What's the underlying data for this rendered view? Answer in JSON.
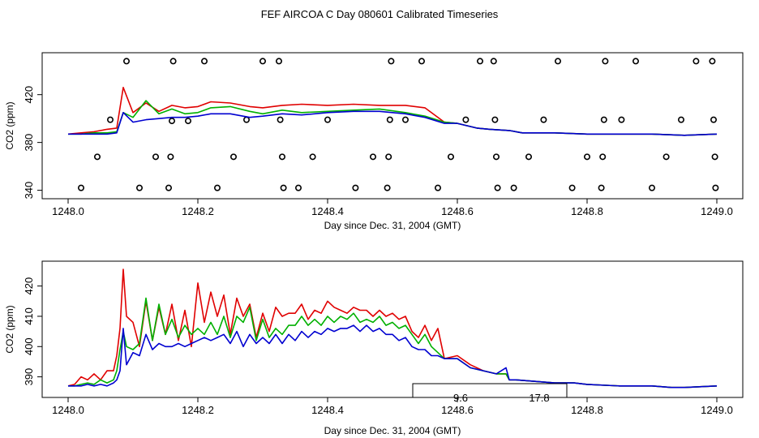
{
  "title": "FEF AIRCOA C  Day 080601  Calibrated Timeseries",
  "colors": {
    "red": "#e00000",
    "green": "#00b000",
    "blue": "#0000d0"
  },
  "chart_data": [
    {
      "type": "line",
      "xlabel": "Day since Dec. 31, 2004 (GMT)",
      "ylabel": "CO2 (ppm)",
      "xlim": [
        1248.0,
        1249.0
      ],
      "ylim": [
        337,
        451
      ],
      "xticks": [
        1248.0,
        1248.2,
        1248.4,
        1248.6,
        1248.8,
        1249.0
      ],
      "xtick_labels": [
        "1248.0",
        "1248.2",
        "1248.4",
        "1248.6",
        "1248.8",
        "1249.0"
      ],
      "yticks": [
        340,
        380,
        420
      ],
      "ytick_labels": [
        "340",
        "380",
        "420"
      ],
      "x": [
        1248.0,
        1248.02,
        1248.04,
        1248.06,
        1248.075,
        1248.085,
        1248.1,
        1248.12,
        1248.14,
        1248.16,
        1248.18,
        1248.2,
        1248.22,
        1248.25,
        1248.28,
        1248.3,
        1248.33,
        1248.36,
        1248.4,
        1248.44,
        1248.48,
        1248.52,
        1248.55,
        1248.58,
        1248.6,
        1248.63,
        1248.65,
        1248.68,
        1248.7,
        1248.75,
        1248.8,
        1248.85,
        1248.9,
        1248.95,
        1249.0
      ],
      "series": [
        {
          "color": "red",
          "values": [
            387,
            388,
            389,
            391,
            392,
            426,
            405,
            413,
            406,
            411,
            409,
            410,
            414,
            413,
            410,
            409,
            411,
            412,
            411,
            412,
            411,
            411,
            409,
            397,
            396,
            392,
            391,
            390,
            388,
            388,
            387,
            387,
            387,
            386,
            387
          ]
        },
        {
          "color": "green",
          "values": [
            387,
            387,
            388,
            388,
            389,
            405,
            401,
            415,
            404,
            408,
            404,
            405,
            409,
            410,
            406,
            404,
            407,
            405,
            406,
            407,
            408,
            405,
            402,
            397,
            396,
            392,
            391,
            390,
            388,
            388,
            387,
            387,
            387,
            386,
            387
          ]
        },
        {
          "color": "blue",
          "values": [
            387,
            387,
            387,
            387,
            388,
            405,
            397,
            399,
            400,
            401,
            401,
            402,
            404,
            404,
            401,
            402,
            404,
            403,
            405,
            406,
            406,
            404,
            401,
            396,
            396,
            392,
            391,
            390,
            388,
            388,
            387,
            387,
            387,
            386,
            387
          ]
        }
      ],
      "markers": [
        [
          1248.02,
          342
        ],
        [
          1248.045,
          368
        ],
        [
          1248.065,
          399
        ],
        [
          1248.09,
          448
        ],
        [
          1248.11,
          342
        ],
        [
          1248.135,
          368
        ],
        [
          1248.155,
          342
        ],
        [
          1248.158,
          368
        ],
        [
          1248.16,
          398
        ],
        [
          1248.162,
          448
        ],
        [
          1248.185,
          398
        ],
        [
          1248.21,
          448
        ],
        [
          1248.23,
          342
        ],
        [
          1248.255,
          368
        ],
        [
          1248.275,
          399
        ],
        [
          1248.3,
          448
        ],
        [
          1248.325,
          448
        ],
        [
          1248.327,
          399
        ],
        [
          1248.33,
          368
        ],
        [
          1248.332,
          342
        ],
        [
          1248.355,
          342
        ],
        [
          1248.377,
          368
        ],
        [
          1248.4,
          399
        ],
        [
          1248.443,
          342
        ],
        [
          1248.47,
          368
        ],
        [
          1248.492,
          342
        ],
        [
          1248.494,
          368
        ],
        [
          1248.496,
          399
        ],
        [
          1248.498,
          448
        ],
        [
          1248.52,
          399
        ],
        [
          1248.545,
          448
        ],
        [
          1248.57,
          342
        ],
        [
          1248.59,
          368
        ],
        [
          1248.613,
          399
        ],
        [
          1248.635,
          448
        ],
        [
          1248.656,
          448
        ],
        [
          1248.658,
          399
        ],
        [
          1248.66,
          368
        ],
        [
          1248.662,
          342
        ],
        [
          1248.687,
          342
        ],
        [
          1248.71,
          368
        ],
        [
          1248.733,
          399
        ],
        [
          1248.755,
          448
        ],
        [
          1248.777,
          342
        ],
        [
          1248.8,
          368
        ],
        [
          1248.822,
          342
        ],
        [
          1248.824,
          368
        ],
        [
          1248.826,
          399
        ],
        [
          1248.828,
          448
        ],
        [
          1248.853,
          399
        ],
        [
          1248.875,
          448
        ],
        [
          1248.9,
          342
        ],
        [
          1248.922,
          368
        ],
        [
          1248.945,
          399
        ],
        [
          1248.968,
          448
        ],
        [
          1248.993,
          448
        ],
        [
          1248.995,
          399
        ],
        [
          1248.997,
          368
        ],
        [
          1248.998,
          342
        ]
      ]
    },
    {
      "type": "line",
      "xlabel": "Day since Dec. 31, 2004 (GMT)",
      "ylabel": "CO2 (ppm)",
      "xlim": [
        1248.0,
        1249.0
      ],
      "ylim": [
        384.8,
        426.6
      ],
      "xticks": [
        1248.0,
        1248.2,
        1248.4,
        1248.6,
        1248.8,
        1249.0
      ],
      "xtick_labels": [
        "1248.0",
        "1248.2",
        "1248.4",
        "1248.6",
        "1248.8",
        "1249.0"
      ],
      "yticks": [
        390,
        400,
        410,
        420
      ],
      "ytick_labels": [
        "390",
        "400",
        "410",
        "420"
      ],
      "x": [
        1248.0,
        1248.01,
        1248.02,
        1248.03,
        1248.04,
        1248.05,
        1248.06,
        1248.07,
        1248.075,
        1248.08,
        1248.085,
        1248.09,
        1248.1,
        1248.11,
        1248.12,
        1248.13,
        1248.14,
        1248.15,
        1248.16,
        1248.17,
        1248.18,
        1248.19,
        1248.2,
        1248.21,
        1248.22,
        1248.23,
        1248.24,
        1248.25,
        1248.26,
        1248.27,
        1248.28,
        1248.29,
        1248.3,
        1248.31,
        1248.32,
        1248.33,
        1248.34,
        1248.35,
        1248.36,
        1248.37,
        1248.38,
        1248.39,
        1248.4,
        1248.41,
        1248.42,
        1248.43,
        1248.44,
        1248.45,
        1248.46,
        1248.47,
        1248.48,
        1248.49,
        1248.5,
        1248.51,
        1248.52,
        1248.53,
        1248.54,
        1248.55,
        1248.56,
        1248.57,
        1248.58,
        1248.6,
        1248.62,
        1248.64,
        1248.66,
        1248.675,
        1248.68,
        1248.69,
        1248.72,
        1248.75,
        1248.78,
        1248.8,
        1248.85,
        1248.9,
        1248.93,
        1248.95,
        1249.0
      ],
      "series": [
        {
          "color": "red",
          "values": [
            387,
            387.5,
            390,
            389,
            391,
            389,
            392,
            392,
            397,
            406,
            425.5,
            410,
            408,
            400,
            415,
            402,
            413,
            404,
            414,
            402,
            412,
            400,
            421,
            408,
            418,
            410,
            417,
            404,
            416,
            410,
            414,
            403,
            411,
            405,
            413,
            410,
            411,
            411,
            414,
            409,
            412,
            411,
            415,
            413,
            412,
            411,
            413,
            412,
            412,
            410,
            412,
            410,
            411,
            409,
            410,
            405,
            403,
            407,
            402,
            406,
            396,
            397,
            394,
            392,
            391,
            391,
            389,
            389,
            388.5,
            388,
            388,
            387.5,
            387,
            387,
            386.5,
            386.5,
            387
          ]
        },
        {
          "color": "green",
          "values": [
            387,
            387,
            387.5,
            388,
            387.5,
            389,
            388,
            389,
            392,
            399,
            405,
            400,
            399,
            401,
            416,
            402,
            414,
            404,
            409,
            403,
            407,
            404,
            406,
            404,
            408,
            404,
            410,
            403,
            410,
            408,
            413,
            402,
            409,
            403,
            406,
            404,
            407,
            407,
            410,
            407,
            409,
            407,
            410,
            408,
            410,
            409,
            411,
            408,
            409,
            408,
            410,
            407,
            408,
            406,
            407,
            404,
            401,
            404,
            400,
            398,
            396,
            396,
            393,
            392,
            391,
            391,
            389,
            389,
            388.5,
            388,
            388,
            387.5,
            387,
            387,
            386.5,
            386.5,
            387
          ]
        },
        {
          "color": "blue",
          "values": [
            387,
            387,
            387,
            387.5,
            387,
            387.5,
            387,
            388,
            389,
            392,
            406,
            394,
            398,
            397,
            404,
            399,
            401,
            400,
            400,
            401,
            400,
            401,
            402,
            403,
            402,
            403,
            404,
            401,
            405,
            400,
            404,
            401,
            403,
            401,
            404,
            401,
            404,
            402,
            405,
            403,
            405,
            404,
            406,
            405,
            406,
            406,
            407,
            405,
            407,
            405,
            406,
            404,
            404,
            402,
            403,
            400,
            399,
            399,
            397,
            397,
            396,
            396,
            393,
            392,
            391,
            393,
            389,
            389,
            388.5,
            388,
            388,
            387.5,
            387,
            387,
            386.5,
            386.5,
            387
          ]
        }
      ],
      "legend": {
        "labels": [
          "9.6",
          "17.8"
        ]
      }
    }
  ]
}
